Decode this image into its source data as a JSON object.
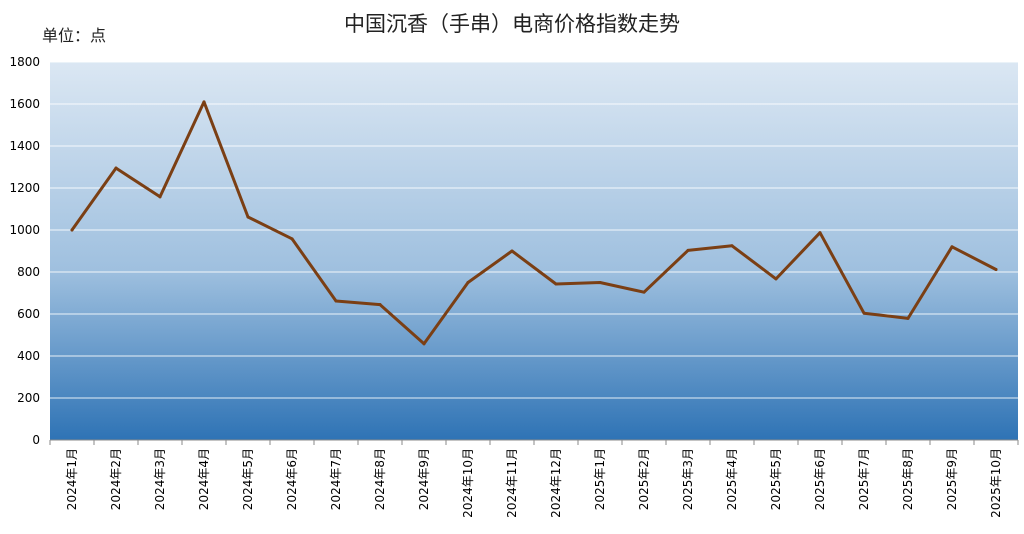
{
  "chart_data": {
    "type": "line",
    "title": "中国沉香（手串）电商价格指数走势",
    "unit_label": "单位：点",
    "ylim": [
      0,
      1800
    ],
    "y_ticks": [
      "0",
      "200",
      "400",
      "600",
      "800",
      "1000",
      "1200",
      "1400",
      "1600",
      "1800"
    ],
    "grid": true,
    "categories": [
      "2024年1月",
      "2024年2月",
      "2024年3月",
      "2024年4月",
      "2024年5月",
      "2024年6月",
      "2024年7月",
      "2024年8月",
      "2024年9月",
      "2024年10月",
      "2024年11月",
      "2024年12月",
      "2025年1月",
      "2025年2月",
      "2025年3月",
      "2025年4月",
      "2025年5月",
      "2025年6月",
      "2025年7月",
      "2025年8月",
      "2025年9月",
      "2025年10月"
    ],
    "series": [
      {
        "color": "#7b3f14",
        "values": [
          1000,
          1295,
          1158,
          1610,
          1062,
          958,
          662,
          645,
          458,
          750,
          900,
          743,
          750,
          704,
          903,
          925,
          767,
          987,
          604,
          579,
          920,
          812
        ]
      }
    ],
    "background_gradient": {
      "top": "#dbe7f3",
      "bottom": "#2e73b5"
    }
  }
}
